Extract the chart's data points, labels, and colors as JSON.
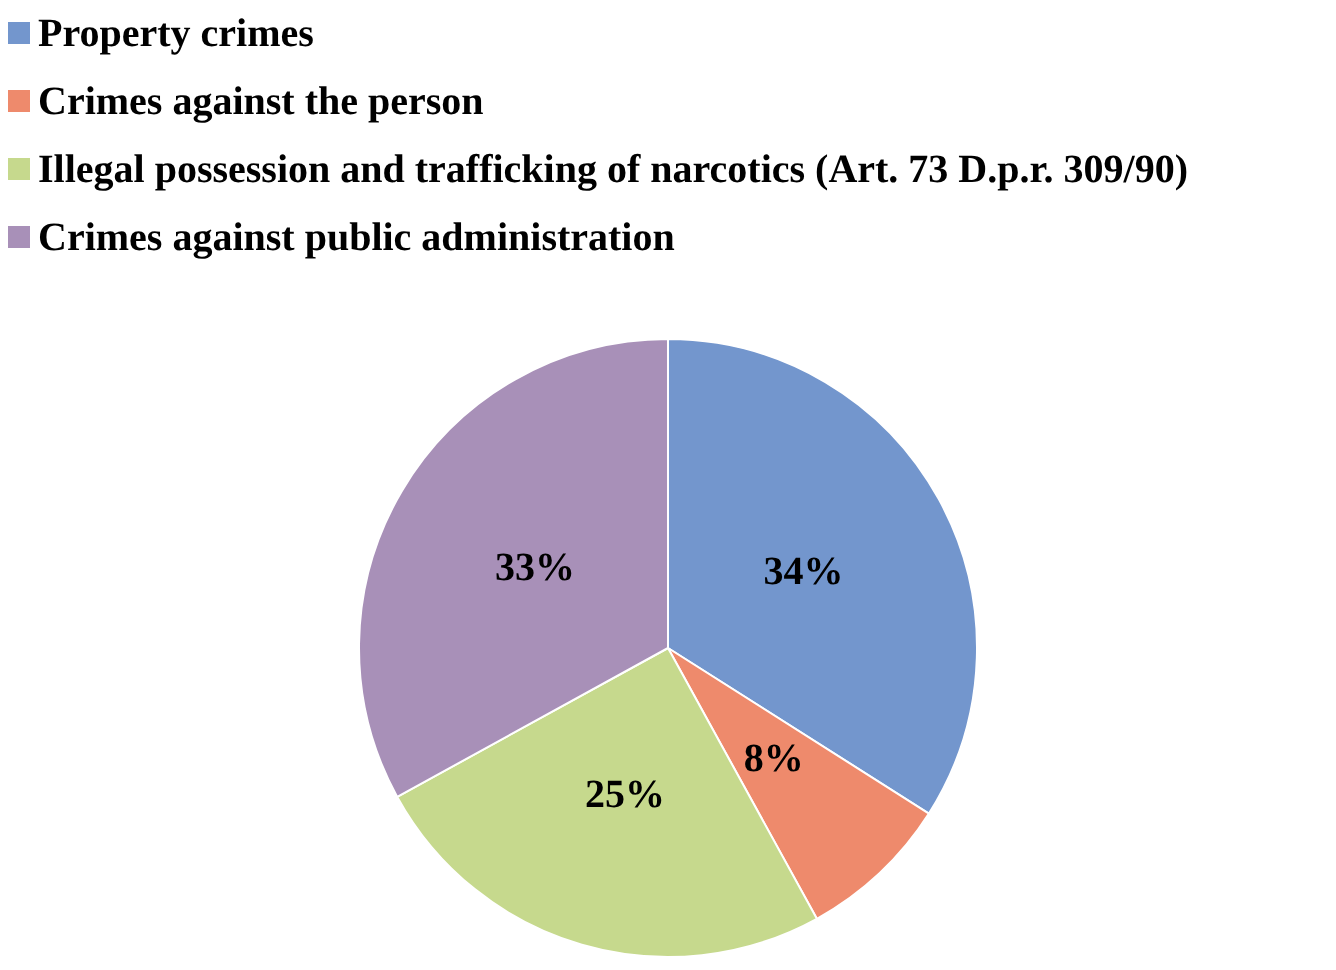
{
  "chart_data": {
    "type": "pie",
    "categories": [
      "Property crimes",
      "Crimes against the person",
      "Illegal possession and trafficking of narcotics (Art. 73 D.p.r. 309/90)",
      "Crimes against public administration"
    ],
    "values": [
      34,
      8,
      25,
      33
    ],
    "colors": [
      "#7396cd",
      "#ee8a6c",
      "#c6d98d",
      "#a890b8"
    ],
    "value_labels": [
      "34%",
      "8%",
      "25%",
      "33%"
    ],
    "legend": "top left"
  }
}
